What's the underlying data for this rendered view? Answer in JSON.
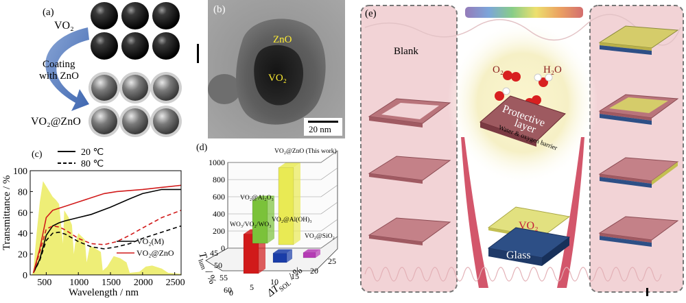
{
  "panels": {
    "a": {
      "label": "(a)",
      "top_text": "VO₂",
      "arrow_text_1": "Coating",
      "arrow_text_2": "with ZnO",
      "bottom_text": "VO₂@ZnO"
    },
    "b": {
      "label": "(b)",
      "shell_text": "ZnO",
      "core_text": "VO₂",
      "scale_text": "20 nm"
    },
    "c": {
      "label": "(c)",
      "legend_top": [
        {
          "name": "20 ℃",
          "style": "solid"
        },
        {
          "name": "80 ℃",
          "style": "dashed"
        }
      ],
      "legend_bottom": [
        {
          "name": "VO₂(M)",
          "color": "#000000"
        },
        {
          "name": "VO₂@ZnO",
          "color": "#d11a1a"
        }
      ],
      "xlabel": "Wavelength / nm",
      "ylabel": "Transmittance / %"
    },
    "d": {
      "label": "(d)",
      "xlabel": "T",
      "xlabel_sub": "lum",
      "xlabel_unit": " / %",
      "ylabel": "ΔT",
      "ylabel_sub": "SOL",
      "ylabel_unit": " / %"
    },
    "e": {
      "label": "(e)",
      "blank_text": "Blank",
      "o2_text": "O₂",
      "h2o_text": "H₂O",
      "protective_line1": "Protective",
      "protective_line2": "layer",
      "barrier_text": "Water & oxygen barrier",
      "vo2_text": "VO₂",
      "glass_text": "Glass"
    }
  },
  "chart_data": [
    {
      "type": "line",
      "title": "",
      "xlabel": "Wavelength / nm",
      "ylabel": "Transmittance / %",
      "xlim": [
        250,
        2600
      ],
      "ylim": [
        0,
        100
      ],
      "x_ticks": [
        500,
        1000,
        1500,
        2000,
        2500
      ],
      "y_ticks": [
        0,
        20,
        40,
        60,
        80,
        100
      ],
      "series": [
        {
          "name": "VO₂(M) 20 ℃",
          "color": "#000000",
          "dash": false,
          "x": [
            300,
            400,
            500,
            600,
            700,
            800,
            1000,
            1200,
            1500,
            1800,
            2000,
            2300,
            2600
          ],
          "y": [
            2,
            15,
            38,
            47,
            50,
            52,
            55,
            58,
            65,
            73,
            78,
            82,
            82
          ]
        },
        {
          "name": "VO₂(M) 80 ℃",
          "color": "#000000",
          "dash": true,
          "x": [
            300,
            400,
            500,
            600,
            700,
            800,
            1000,
            1200,
            1400,
            1600,
            1800,
            2000,
            2300,
            2600
          ],
          "y": [
            2,
            14,
            33,
            40,
            41,
            39,
            32,
            27,
            25,
            27,
            30,
            35,
            41,
            47
          ]
        },
        {
          "name": "VO₂@ZnO 20 ℃",
          "color": "#d11a1a",
          "dash": false,
          "x": [
            300,
            400,
            500,
            600,
            700,
            800,
            1000,
            1200,
            1400,
            1600,
            1800,
            2000,
            2300,
            2600
          ],
          "y": [
            2,
            25,
            55,
            62,
            64,
            66,
            70,
            74,
            78,
            80,
            81,
            82,
            84,
            86
          ]
        },
        {
          "name": "VO₂@ZnO 80 ℃",
          "color": "#d11a1a",
          "dash": true,
          "x": [
            300,
            400,
            500,
            600,
            700,
            800,
            1000,
            1200,
            1400,
            1600,
            1800,
            2000,
            2300,
            2600
          ],
          "y": [
            2,
            22,
            44,
            47,
            46,
            43,
            35,
            30,
            29,
            32,
            38,
            45,
            55,
            62
          ]
        }
      ]
    },
    {
      "type": "bar",
      "title": "",
      "xlabel": "T_lum / %",
      "ylabel": "ΔT_SOL / %",
      "zlim": [
        0,
        1000
      ],
      "z_ticks": [
        0,
        200,
        400,
        600,
        800,
        1000
      ],
      "x_ticks": [
        45,
        50,
        55,
        60
      ],
      "y_ticks": [
        0,
        5,
        10,
        15,
        20,
        25
      ],
      "bars": [
        {
          "name": "WO₃/VO₂/WO₃",
          "color": "#d11a1a",
          "value": 460
        },
        {
          "name": "VO₂@Al₂O₃",
          "color": "#7bc23a",
          "value": 500
        },
        {
          "name": "VO₂@ZnO (This work)",
          "color": "#e9ea54",
          "value": 900
        },
        {
          "name": "VO₂@Al(OH)₃",
          "color": "#1a3da8",
          "value": 110
        },
        {
          "name": "VO₂@SiO₂",
          "color": "#b53bb5",
          "value": 60
        }
      ]
    }
  ]
}
